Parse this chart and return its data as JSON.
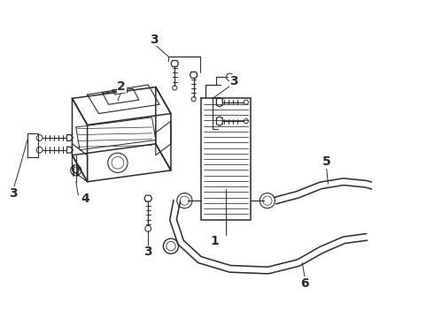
{
  "bg": "#ffffff",
  "lc": "#2a2a2a",
  "lw": 1.0,
  "fig_w": 4.9,
  "fig_h": 3.6,
  "dpi": 100
}
